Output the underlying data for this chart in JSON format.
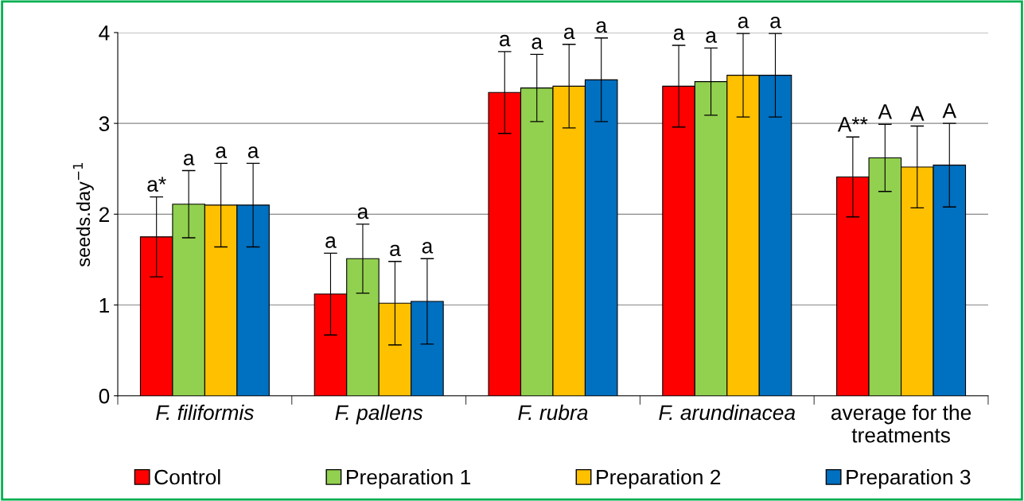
{
  "chart_data": {
    "type": "bar",
    "ylabel": "seeds.day$^{−1}$",
    "categories": [
      "F. filiformis",
      "F. pallens",
      "F. rubra",
      "F. arundinacea",
      "average for the treatments"
    ],
    "series": [
      {
        "name": "Control",
        "color": "#ff0000",
        "values": [
          1.75,
          1.12,
          3.34,
          3.41,
          2.41
        ],
        "value_labels": [
          "a*",
          "a",
          "a",
          "a",
          "A**"
        ],
        "errors": [
          0.44,
          0.45,
          0.45,
          0.45,
          0.44
        ]
      },
      {
        "name": "Preparation 1",
        "color": "#92d050",
        "values": [
          2.11,
          1.51,
          3.39,
          3.46,
          2.62
        ],
        "value_labels": [
          "a",
          "a",
          "a",
          "a",
          "A"
        ],
        "errors": [
          0.37,
          0.38,
          0.37,
          0.37,
          0.37
        ]
      },
      {
        "name": "Preparation 2",
        "color": "#ffc000",
        "values": [
          2.1,
          1.02,
          3.41,
          3.53,
          2.52
        ],
        "value_labels": [
          "a",
          "a",
          "a",
          "a",
          "A"
        ],
        "errors": [
          0.46,
          0.46,
          0.46,
          0.46,
          0.45
        ]
      },
      {
        "name": "Preparation 3",
        "color": "#0070c0",
        "values": [
          2.1,
          1.04,
          3.48,
          3.53,
          2.54
        ],
        "value_labels": [
          "a",
          "a",
          "a",
          "a",
          "A"
        ],
        "errors": [
          0.46,
          0.47,
          0.46,
          0.46,
          0.46
        ]
      }
    ],
    "ylim": [
      0,
      4
    ],
    "yticks": [
      0,
      1,
      2,
      3,
      4
    ],
    "grid": "y",
    "legend": "bottom"
  }
}
